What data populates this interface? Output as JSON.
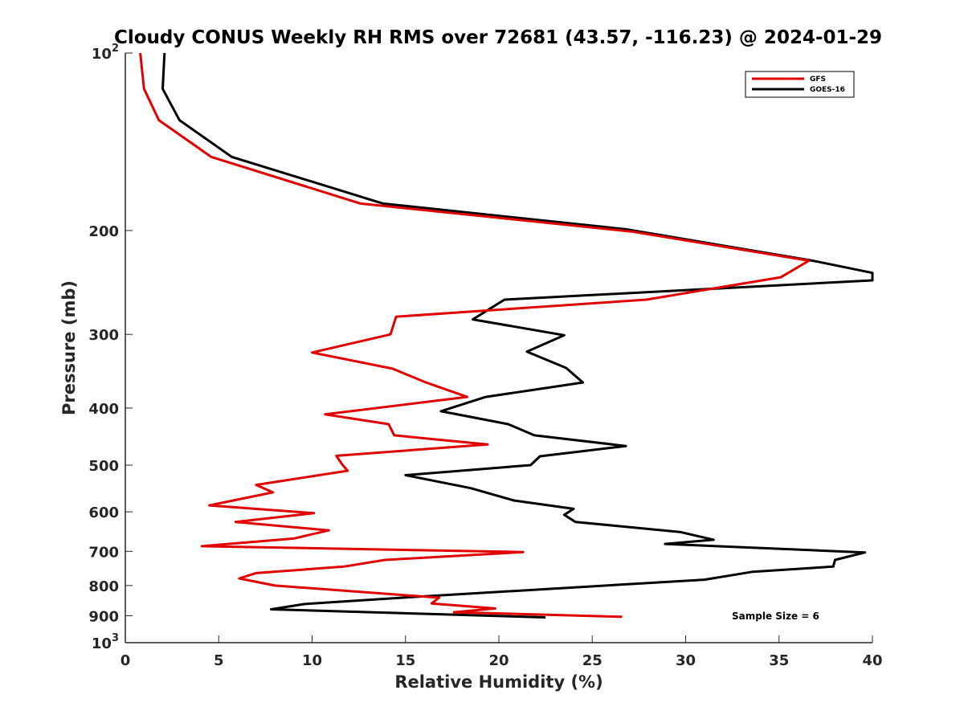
{
  "chart_data": {
    "type": "line",
    "title": "Cloudy CONUS Weekly RH RMS over 72681 (43.57, -116.23) @ 2024-01-29",
    "xlabel": "Relative Humidity (%)",
    "ylabel": "Pressure (mb)",
    "xlim": [
      0,
      40
    ],
    "ylim": [
      100,
      1000
    ],
    "y_scale": "log",
    "y_reversed": true,
    "x_ticks": [
      0,
      5,
      10,
      15,
      20,
      25,
      30,
      35,
      40
    ],
    "y_ticks": [
      {
        "value": 100,
        "base": "10",
        "exp": "2"
      },
      {
        "value": 200,
        "label": "200"
      },
      {
        "value": 300,
        "label": "300"
      },
      {
        "value": 400,
        "label": "400"
      },
      {
        "value": 500,
        "label": "500"
      },
      {
        "value": 600,
        "label": "600"
      },
      {
        "value": 700,
        "label": "700"
      },
      {
        "value": 800,
        "label": "800"
      },
      {
        "value": 900,
        "label": "900"
      },
      {
        "value": 1000,
        "base": "10",
        "exp": "3"
      }
    ],
    "legend_position": "top-right",
    "annotation": "Sample Size = 6",
    "series": [
      {
        "name": "GFS",
        "color": "#e00000",
        "points": [
          [
            0.8,
            100
          ],
          [
            1.0,
            115
          ],
          [
            1.8,
            130
          ],
          [
            4.6,
            150
          ],
          [
            12.6,
            180
          ],
          [
            27.2,
            201
          ],
          [
            36.6,
            225
          ],
          [
            35.1,
            240
          ],
          [
            27.9,
            262
          ],
          [
            14.5,
            280
          ],
          [
            14.2,
            300
          ],
          [
            14.0,
            301
          ],
          [
            10.0,
            322
          ],
          [
            14.3,
            343
          ],
          [
            16.1,
            362
          ],
          [
            18.3,
            383
          ],
          [
            10.7,
            410
          ],
          [
            14.1,
            426
          ],
          [
            14.4,
            445
          ],
          [
            19.4,
            461
          ],
          [
            11.3,
            482
          ],
          [
            11.6,
            498
          ],
          [
            11.9,
            511
          ],
          [
            7.0,
            540
          ],
          [
            7.9,
            556
          ],
          [
            4.5,
            585
          ],
          [
            10.1,
            603
          ],
          [
            5.9,
            624
          ],
          [
            10.9,
            645
          ],
          [
            9.0,
            666
          ],
          [
            4.1,
            686
          ],
          [
            21.3,
            702
          ],
          [
            13.9,
            724
          ],
          [
            11.7,
            743
          ],
          [
            7.0,
            762
          ],
          [
            6.1,
            778
          ],
          [
            8.0,
            800
          ],
          [
            16.8,
            839
          ],
          [
            16.4,
            858
          ],
          [
            19.8,
            875
          ],
          [
            17.6,
            888
          ],
          [
            26.6,
            904
          ]
        ]
      },
      {
        "name": "GOES-16",
        "color": "#000000",
        "points": [
          [
            2.1,
            100
          ],
          [
            2.0,
            115
          ],
          [
            2.9,
            130
          ],
          [
            5.7,
            150
          ],
          [
            13.8,
            180
          ],
          [
            26.8,
            199
          ],
          [
            36.8,
            225
          ],
          [
            40.0,
            236
          ],
          [
            40.0,
            243
          ],
          [
            20.3,
            262
          ],
          [
            18.6,
            283
          ],
          [
            23.5,
            301
          ],
          [
            21.5,
            321
          ],
          [
            23.6,
            342
          ],
          [
            24.5,
            362
          ],
          [
            19.3,
            383
          ],
          [
            16.9,
            405
          ],
          [
            20.5,
            426
          ],
          [
            21.9,
            445
          ],
          [
            26.8,
            464
          ],
          [
            22.2,
            483
          ],
          [
            21.7,
            500
          ],
          [
            15.0,
            520
          ],
          [
            18.5,
            547
          ],
          [
            20.8,
            574
          ],
          [
            24.0,
            593
          ],
          [
            23.5,
            607
          ],
          [
            24.1,
            624
          ],
          [
            29.7,
            649
          ],
          [
            31.5,
            669
          ],
          [
            28.9,
            680
          ],
          [
            39.6,
            703
          ],
          [
            38.0,
            724
          ],
          [
            37.9,
            743
          ],
          [
            33.6,
            758
          ],
          [
            31.0,
            782
          ],
          [
            15.0,
            838
          ],
          [
            9.6,
            860
          ],
          [
            7.8,
            878
          ],
          [
            22.5,
            906
          ]
        ]
      }
    ]
  }
}
